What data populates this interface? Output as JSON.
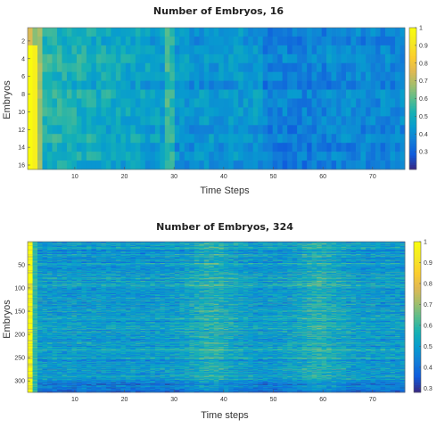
{
  "chart_data": [
    {
      "type": "heatmap",
      "title": "Number of Embryos, 16",
      "xlabel": "Time Steps",
      "ylabel": "Embryos",
      "rows": 16,
      "cols": 77,
      "xlim": [
        0.5,
        76.5
      ],
      "ylim": [
        0.5,
        16.5
      ],
      "x_ticks": [
        10,
        20,
        30,
        40,
        50,
        60,
        70
      ],
      "y_ticks": [
        2,
        4,
        6,
        8,
        10,
        12,
        14,
        16
      ],
      "colorbar": {
        "range": [
          0.2,
          1.0
        ],
        "ticks": [
          0.3,
          0.4,
          0.5,
          0.6,
          0.7,
          0.8,
          0.9,
          1
        ]
      },
      "colormap": "parula",
      "description_values": {
        "first_time_steps": [
          1.0,
          0.95,
          0.7
        ],
        "early_plateau": 0.52,
        "mid_level": 0.42,
        "late_level": 0.36
      }
    },
    {
      "type": "heatmap",
      "title": "Number of Embryos, 324",
      "xlabel": "Time steps",
      "ylabel": "Embryos",
      "rows": 324,
      "cols": 77,
      "xlim": [
        0.5,
        76.5
      ],
      "ylim": [
        0.5,
        324.5
      ],
      "x_ticks": [
        10,
        20,
        30,
        40,
        50,
        60,
        70
      ],
      "y_ticks": [
        50,
        100,
        150,
        200,
        250,
        300
      ],
      "colorbar": {
        "range": [
          0.28,
          1.0
        ],
        "ticks": [
          0.3,
          0.4,
          0.5,
          0.6,
          0.7,
          0.8,
          0.9,
          1
        ]
      },
      "colormap": "parula",
      "description_values": {
        "first_time_steps": [
          1.0,
          0.6
        ],
        "typical_level": 0.5,
        "bright_bands_near_steps": [
          38,
          60
        ]
      }
    }
  ]
}
